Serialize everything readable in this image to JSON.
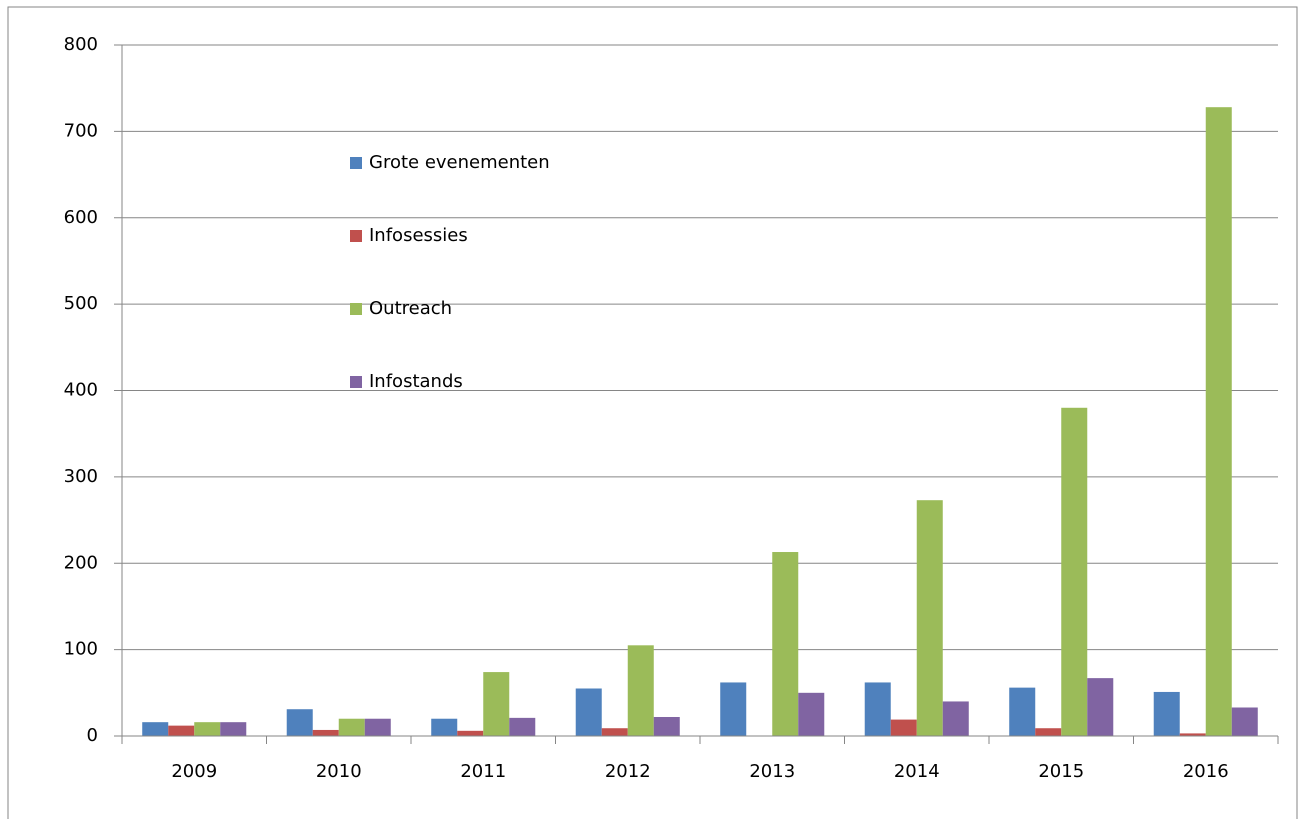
{
  "chart_data": {
    "type": "bar",
    "categories": [
      "2009",
      "2010",
      "2011",
      "2012",
      "2013",
      "2014",
      "2015",
      "2016"
    ],
    "series": [
      {
        "name": "Grote evenementen",
        "color": "#4f81bd",
        "values": [
          16,
          31,
          20,
          55,
          62,
          62,
          56,
          51
        ]
      },
      {
        "name": "Infosessies",
        "color": "#c0504d",
        "values": [
          12,
          7,
          6,
          9,
          0,
          19,
          9,
          3
        ]
      },
      {
        "name": "Outreach",
        "color": "#9bbb59",
        "values": [
          16,
          20,
          74,
          105,
          213,
          273,
          380,
          728
        ]
      },
      {
        "name": "Infostands",
        "color": "#8064a2",
        "values": [
          16,
          20,
          21,
          22,
          50,
          40,
          67,
          33
        ]
      }
    ],
    "ylim": [
      0,
      800
    ],
    "yticks": [
      0,
      100,
      200,
      300,
      400,
      500,
      600,
      700,
      800
    ],
    "grid": true,
    "legend": "inside-top-left"
  }
}
